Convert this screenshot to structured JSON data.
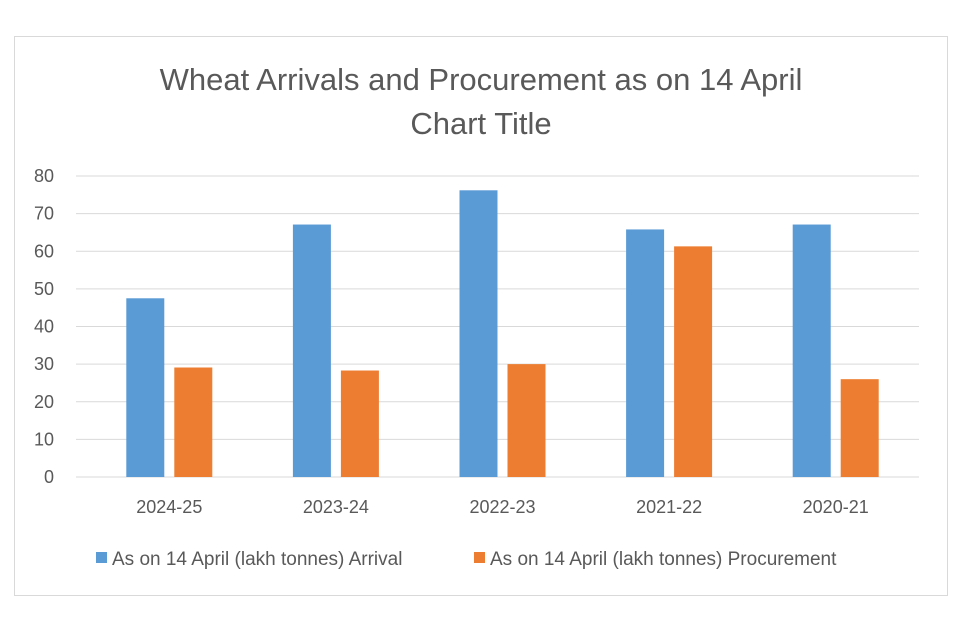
{
  "chart_data": {
    "type": "bar",
    "title": "Wheat Arrivals and Procurement as on 14 April",
    "subtitle": "Chart Title",
    "xlabel": "",
    "ylabel": "",
    "categories": [
      "2024-25",
      "2023-24",
      "2022-23",
      "2021-22",
      "2020-21"
    ],
    "series": [
      {
        "name": "As on 14 April (lakh tonnes) Arrival",
        "color": "#5b9bd5",
        "values": [
          47.5,
          67.1,
          76.2,
          65.8,
          67.1
        ]
      },
      {
        "name": "As on 14 April (lakh tonnes) Procurement",
        "color": "#ed7d31",
        "values": [
          29.1,
          28.3,
          30.0,
          61.3,
          26.0
        ]
      }
    ],
    "ylim": [
      0,
      80
    ],
    "yticks": [
      0,
      10,
      20,
      30,
      40,
      50,
      60,
      70,
      80
    ],
    "grid": true,
    "legend_position": "bottom"
  }
}
